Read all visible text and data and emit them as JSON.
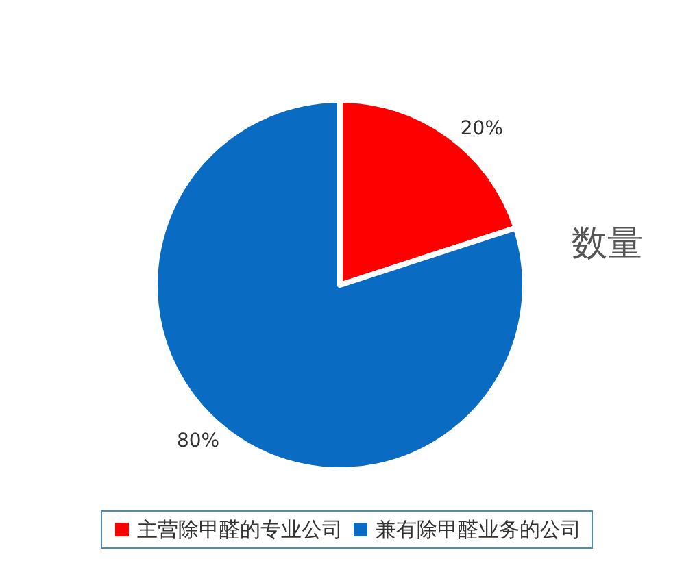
{
  "chart_data": {
    "type": "pie",
    "title": "数量",
    "categories": [
      "主营除甲醛的专业公司",
      "兼有除甲醛业务的公司"
    ],
    "values": [
      20,
      80
    ],
    "colors": [
      "#ff0000",
      "#0a6bc2"
    ],
    "value_labels": [
      "20%",
      "80%"
    ],
    "legend": "bottom"
  }
}
